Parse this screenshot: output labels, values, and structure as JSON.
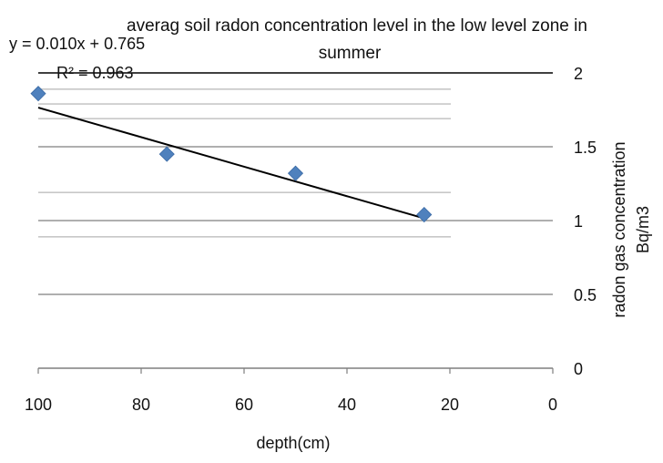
{
  "chart_data": {
    "type": "scatter",
    "title_lines": [
      "averag soil radon concentration level in the low level zone in",
      "summer"
    ],
    "xlabel": "depth(cm)",
    "ylabel_lines": [
      "radon gas concentration",
      "Bq/m3"
    ],
    "x_axis": {
      "min": 0,
      "max": 100,
      "reversed": true,
      "ticks": [
        100,
        80,
        60,
        40,
        20,
        0
      ]
    },
    "y_axis": {
      "min": 0,
      "max": 2,
      "position": "right",
      "ticks": [
        0,
        0.5,
        1,
        1.5,
        2
      ]
    },
    "grid": true,
    "series": [
      {
        "marker": "diamond",
        "color": "#4F81BD",
        "points": [
          {
            "x": 100,
            "y": 1.86
          },
          {
            "x": 75,
            "y": 1.45
          },
          {
            "x": 50,
            "y": 1.32
          },
          {
            "x": 25,
            "y": 1.04
          }
        ]
      }
    ],
    "trendline": {
      "type": "linear",
      "slope": 0.01,
      "intercept": 0.765,
      "x_range": [
        25,
        100
      ],
      "equation_label": "y = 0.010x + 0.765",
      "r2_label": "R² = 0.963",
      "color": "#000000"
    }
  }
}
